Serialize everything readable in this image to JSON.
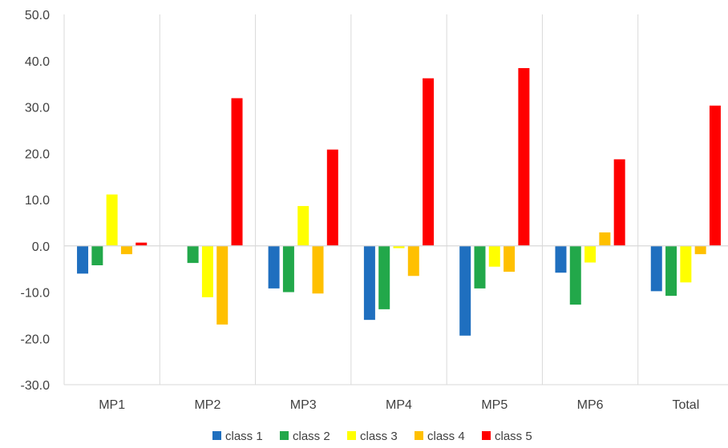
{
  "chart_data": {
    "type": "bar",
    "categories": [
      "MP1",
      "MP2",
      "MP3",
      "MP4",
      "MP5",
      "MP6",
      "Total"
    ],
    "series": [
      {
        "name": "class 1",
        "color": "#1f6fbf",
        "values": [
          -6.0,
          0.0,
          -9.2,
          -16.0,
          -19.4,
          -5.8,
          -9.8
        ]
      },
      {
        "name": "class 2",
        "color": "#22a84a",
        "values": [
          -4.2,
          -3.7,
          -10.0,
          -13.7,
          -9.2,
          -12.7,
          -10.8
        ]
      },
      {
        "name": "class 3",
        "color": "#ffff00",
        "values": [
          11.1,
          -11.1,
          8.6,
          -0.5,
          -4.5,
          -3.6,
          -7.9
        ]
      },
      {
        "name": "class 4",
        "color": "#ffc000",
        "values": [
          -1.8,
          -17.0,
          -10.3,
          -6.5,
          -5.6,
          2.9,
          -1.8
        ]
      },
      {
        "name": "class 5",
        "color": "#ff0000",
        "values": [
          0.7,
          31.9,
          20.8,
          36.2,
          38.4,
          18.7,
          30.3
        ]
      }
    ],
    "ylim": [
      -30,
      50
    ],
    "y_ticks": [
      "50.0",
      "40.0",
      "30.0",
      "20.0",
      "10.0",
      "0.0",
      "-10.0",
      "-20.0",
      "-30.0"
    ],
    "y_tick_values": [
      50,
      40,
      30,
      20,
      10,
      0,
      -10,
      -20,
      -30
    ],
    "grid": "vertical category separators",
    "legend": "bottom",
    "title": "",
    "xlabel": "",
    "ylabel": ""
  }
}
